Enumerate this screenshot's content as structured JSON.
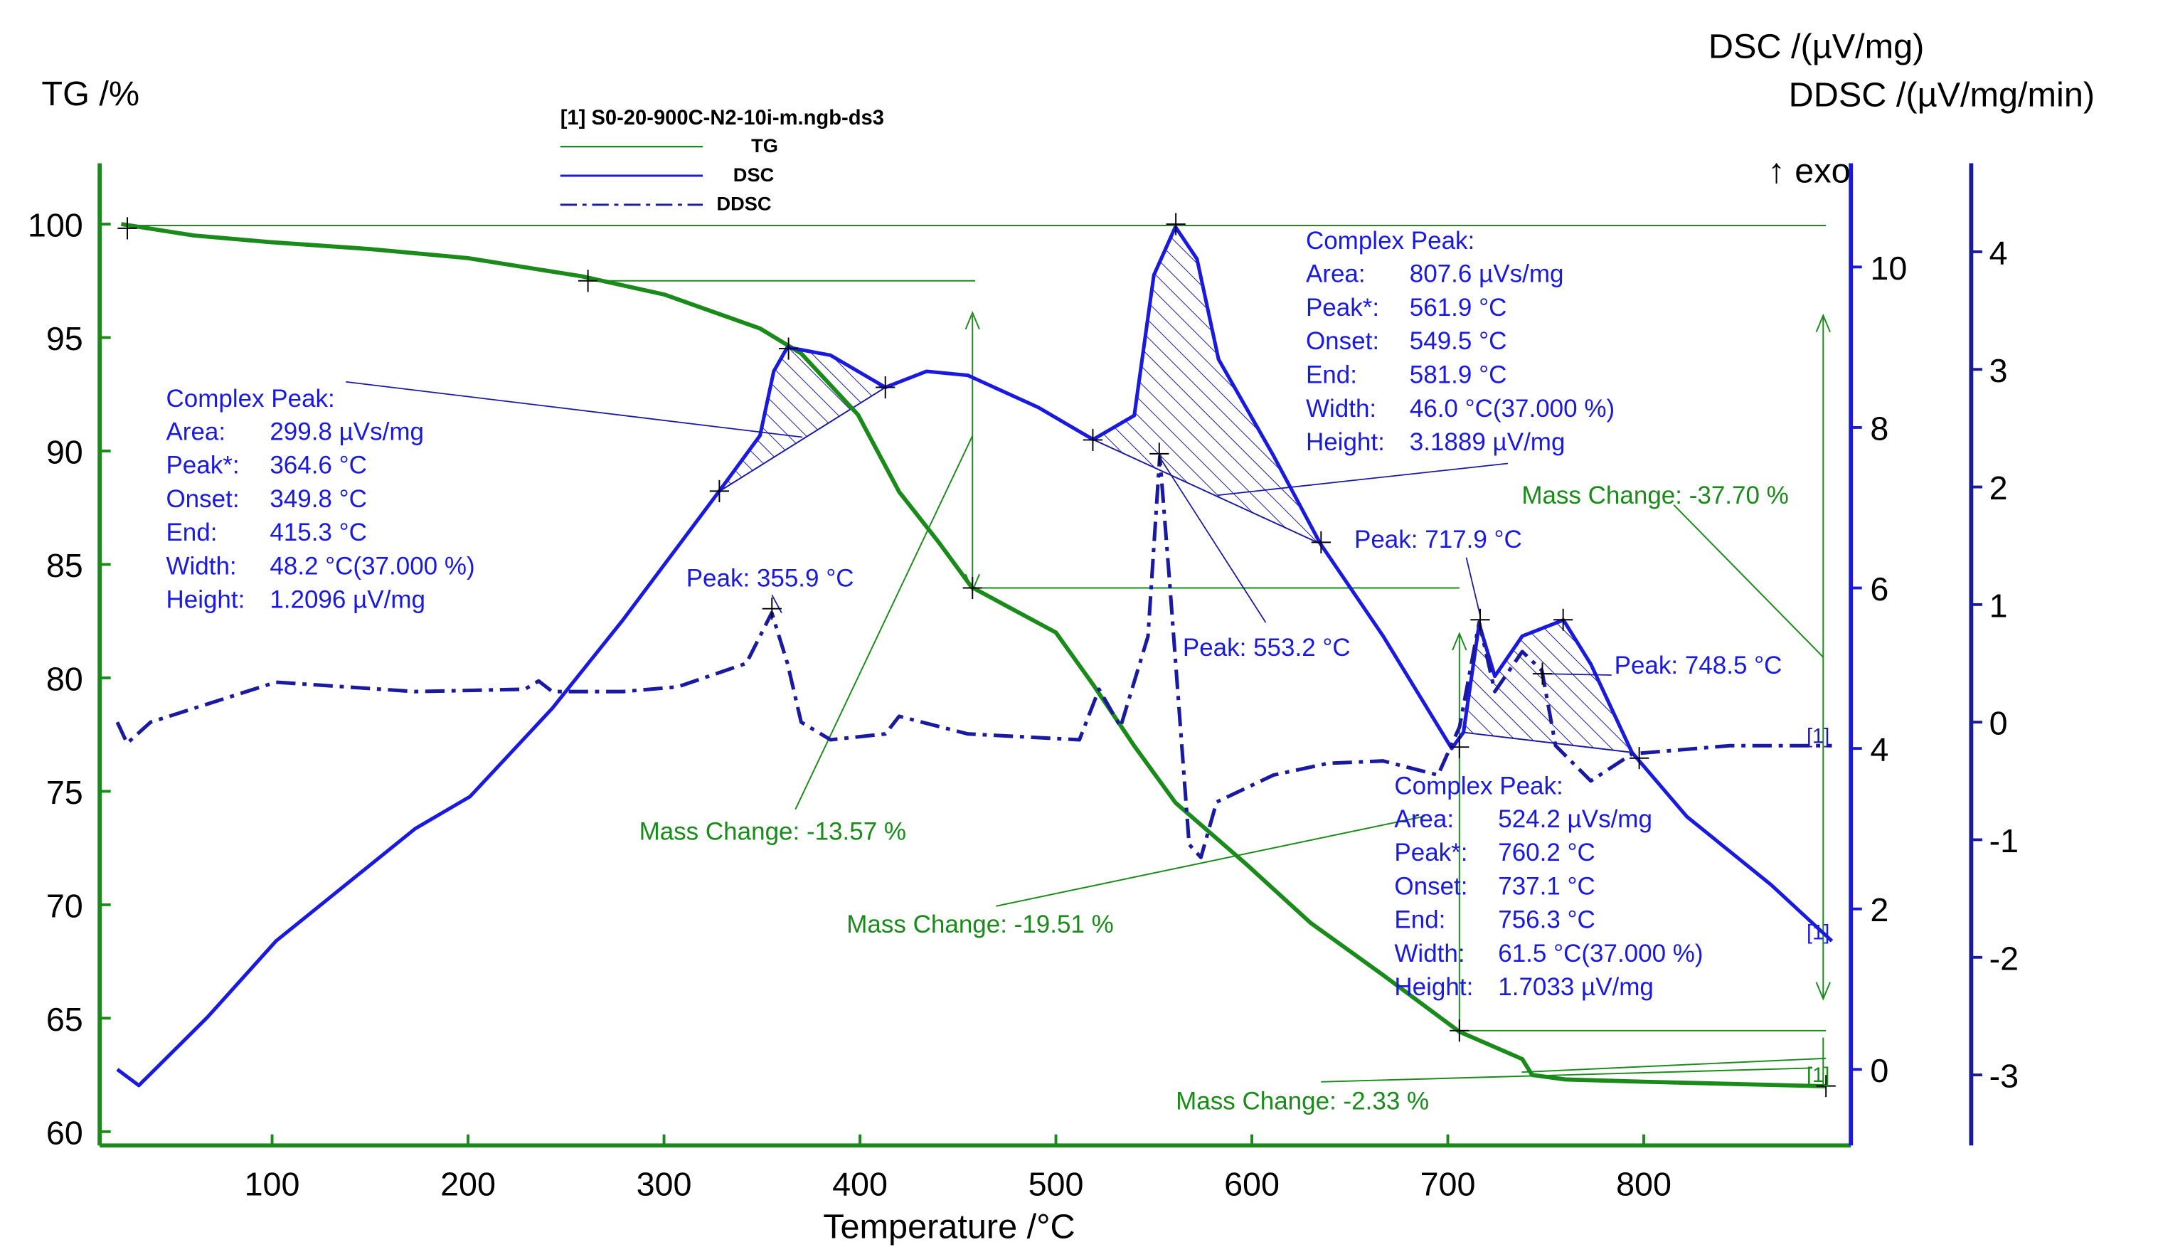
{
  "chart_data": {
    "type": "line",
    "legend": {
      "title": "[1] S0-20-900C-N2-10i-m.ngb-ds3",
      "entries": [
        "TG",
        "DSC",
        "DDSC"
      ],
      "placement": "top-center"
    },
    "xlabel": "Temperature /°C",
    "ylabel_left": "TG /%",
    "ylabel_right1": "DSC /(µV/mg)",
    "ylabel_right2": "DDSC /(µV/mg/min)",
    "exo_label": "↑ exo",
    "xlim": [
      0,
      900
    ],
    "tg_lim": [
      60,
      100
    ],
    "dsc_lim": [
      0,
      10
    ],
    "ddsc_lim": [
      -3,
      4
    ],
    "xticks": [
      "100",
      "200",
      "300",
      "400",
      "500",
      "600",
      "700",
      "800"
    ],
    "tg_ticks": [
      "60",
      "65",
      "70",
      "75",
      "80",
      "85",
      "90",
      "95",
      "100"
    ],
    "dsc_ticks": [
      "0",
      "2",
      "4",
      "6",
      "8",
      "10"
    ],
    "ddsc_ticks": [
      "-3",
      "-2",
      "-1",
      "0",
      "1",
      "2",
      "3",
      "4"
    ],
    "colors": {
      "TG": "#1a8a1a",
      "DSC": "#1a1adf",
      "DDSC": "#1a1aa0"
    },
    "series": [
      {
        "name": "TG",
        "axis": "tg",
        "x": [
          23,
          60,
          100,
          150,
          200,
          258,
          300,
          349,
          370,
          399,
          420,
          440,
          457,
          500,
          519,
          540,
          561,
          597,
          630,
          667,
          706,
          738,
          743,
          760,
          800,
          893
        ],
        "y": [
          100,
          99.5,
          99.2,
          98.9,
          98.5,
          97.7,
          96.9,
          95.4,
          94.3,
          91.6,
          88.2,
          86,
          84,
          82,
          79.7,
          77,
          74.5,
          71.8,
          69.2,
          66.9,
          64.4,
          63.2,
          62.5,
          62.3,
          62.2,
          62.0
        ]
      },
      {
        "name": "DSC",
        "axis": "dsc",
        "x": [
          21,
          32,
          67,
          102,
          173,
          201,
          243,
          279,
          328,
          349,
          356,
          363,
          385,
          413,
          434,
          455,
          491,
          519,
          526,
          540,
          550,
          561,
          572,
          583,
          611,
          635,
          667,
          702,
          708,
          716,
          724,
          738,
          759,
          773,
          794,
          822,
          865,
          896
        ],
        "y": [
          0,
          -0.2,
          0.65,
          1.6,
          3.0,
          3.4,
          4.5,
          5.6,
          7.2,
          7.9,
          8.7,
          9.0,
          8.9,
          8.5,
          8.7,
          8.65,
          8.25,
          7.85,
          7.95,
          8.15,
          9.9,
          10.5,
          10.1,
          8.85,
          7.65,
          6.55,
          5.4,
          4.0,
          4.2,
          5.55,
          4.9,
          5.4,
          5.6,
          5.05,
          3.95,
          3.15,
          2.3,
          1.6
        ]
      },
      {
        "name": "DDSC",
        "axis": "ddsc",
        "x": [
          21,
          26,
          38,
          102,
          173,
          229,
          236,
          243,
          279,
          307,
          342,
          355,
          363,
          370,
          385,
          413,
          420,
          455,
          512,
          522,
          533,
          547,
          553,
          558,
          568,
          574,
          582,
          611,
          639,
          667,
          695,
          706,
          716,
          724,
          738,
          748,
          755,
          773,
          794,
          844,
          896
        ],
        "y": [
          0,
          -0.18,
          0,
          0.34,
          0.26,
          0.28,
          0.35,
          0.26,
          0.26,
          0.3,
          0.5,
          0.93,
          0.5,
          0,
          -0.15,
          -0.1,
          0.05,
          -0.1,
          -0.15,
          0.28,
          -0.04,
          0.73,
          2.26,
          1.2,
          -1.04,
          -1.15,
          -0.68,
          -0.45,
          -0.35,
          -0.33,
          -0.45,
          -0.04,
          0.85,
          0.26,
          0.6,
          0.44,
          -0.2,
          -0.5,
          -0.27,
          -0.2,
          -0.2
        ]
      }
    ],
    "peaks": [
      {
        "title": "Complex Peak:",
        "rows": [
          [
            "Area:",
            "299.8 µVs/mg"
          ],
          [
            "Peak*:",
            "364.6 °C"
          ],
          [
            "Onset:",
            "349.8 °C"
          ],
          [
            "End:",
            "415.3 °C"
          ],
          [
            "Width:",
            "48.2 °C(37.000 %)"
          ],
          [
            "Height:",
            "1.2096 µV/mg"
          ]
        ],
        "range": [
          328,
          413
        ]
      },
      {
        "title": "Complex Peak:",
        "rows": [
          [
            "Area:",
            "807.6 µVs/mg"
          ],
          [
            "Peak*:",
            "561.9 °C"
          ],
          [
            "Onset:",
            "549.5 °C"
          ],
          [
            "End:",
            "581.9 °C"
          ],
          [
            "Width:",
            "46.0 °C(37.000 %)"
          ],
          [
            "Height:",
            "3.1889 µV/mg"
          ]
        ],
        "range": [
          519,
          635
        ]
      },
      {
        "title": "Complex Peak:",
        "rows": [
          [
            "Area:",
            "524.2 µVs/mg"
          ],
          [
            "Peak*:",
            "760.2 °C"
          ],
          [
            "Onset:",
            "737.1 °C"
          ],
          [
            "End:",
            "756.3 °C"
          ],
          [
            "Width:",
            "61.5 °C(37.000 %)"
          ],
          [
            "Height:",
            "1.7033 µV/mg"
          ]
        ],
        "range": [
          706,
          794
        ]
      }
    ],
    "peak_labels": [
      "Peak: 355.9 °C",
      "Peak: 553.2 °C",
      "Peak: 717.9 °C",
      "Peak: 748.5 °C"
    ],
    "mass_changes": [
      "Mass Change: -13.57 %",
      "Mass Change: -19.51 %",
      "Mass Change: -37.70 %",
      "Mass Change: -2.33 %"
    ],
    "curve_markers": [
      "[1]",
      "[1]",
      "[1]"
    ]
  }
}
